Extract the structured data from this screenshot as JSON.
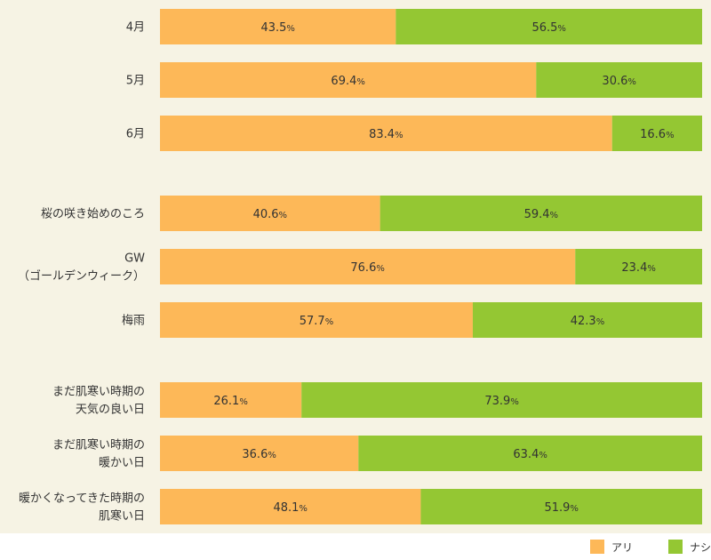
{
  "chart_data": {
    "type": "bar",
    "orientation": "horizontal",
    "stacked": true,
    "percent_stacked": true,
    "categories": [
      [
        "4月"
      ],
      [
        "5月"
      ],
      [
        "6月"
      ],
      [
        "桜の咲き始めのころ"
      ],
      [
        "GW",
        "（ゴールデンウィーク）"
      ],
      [
        "梅雨"
      ],
      [
        "まだ肌寒い時期の",
        "天気の良い日"
      ],
      [
        "まだ肌寒い時期の",
        "暖かい日"
      ],
      [
        "暖かくなってきた時期の",
        "肌寒い日"
      ]
    ],
    "groups": [
      [
        0,
        1,
        2
      ],
      [
        3,
        4,
        5
      ],
      [
        6,
        7,
        8
      ]
    ],
    "series": [
      {
        "name": "アリ",
        "color": "#fdb858",
        "values": [
          43.5,
          69.4,
          83.4,
          40.6,
          76.6,
          57.7,
          26.1,
          36.6,
          48.1
        ]
      },
      {
        "name": "ナシ",
        "color": "#94c733",
        "values": [
          56.5,
          30.6,
          16.6,
          59.4,
          23.4,
          42.3,
          73.9,
          63.4,
          51.9
        ]
      }
    ],
    "value_unit": "%",
    "xlim": [
      0,
      100
    ],
    "legend_position": "bottom-right",
    "grid": false
  },
  "colors": {
    "background": "#f6f3e4",
    "text": "#333333"
  }
}
